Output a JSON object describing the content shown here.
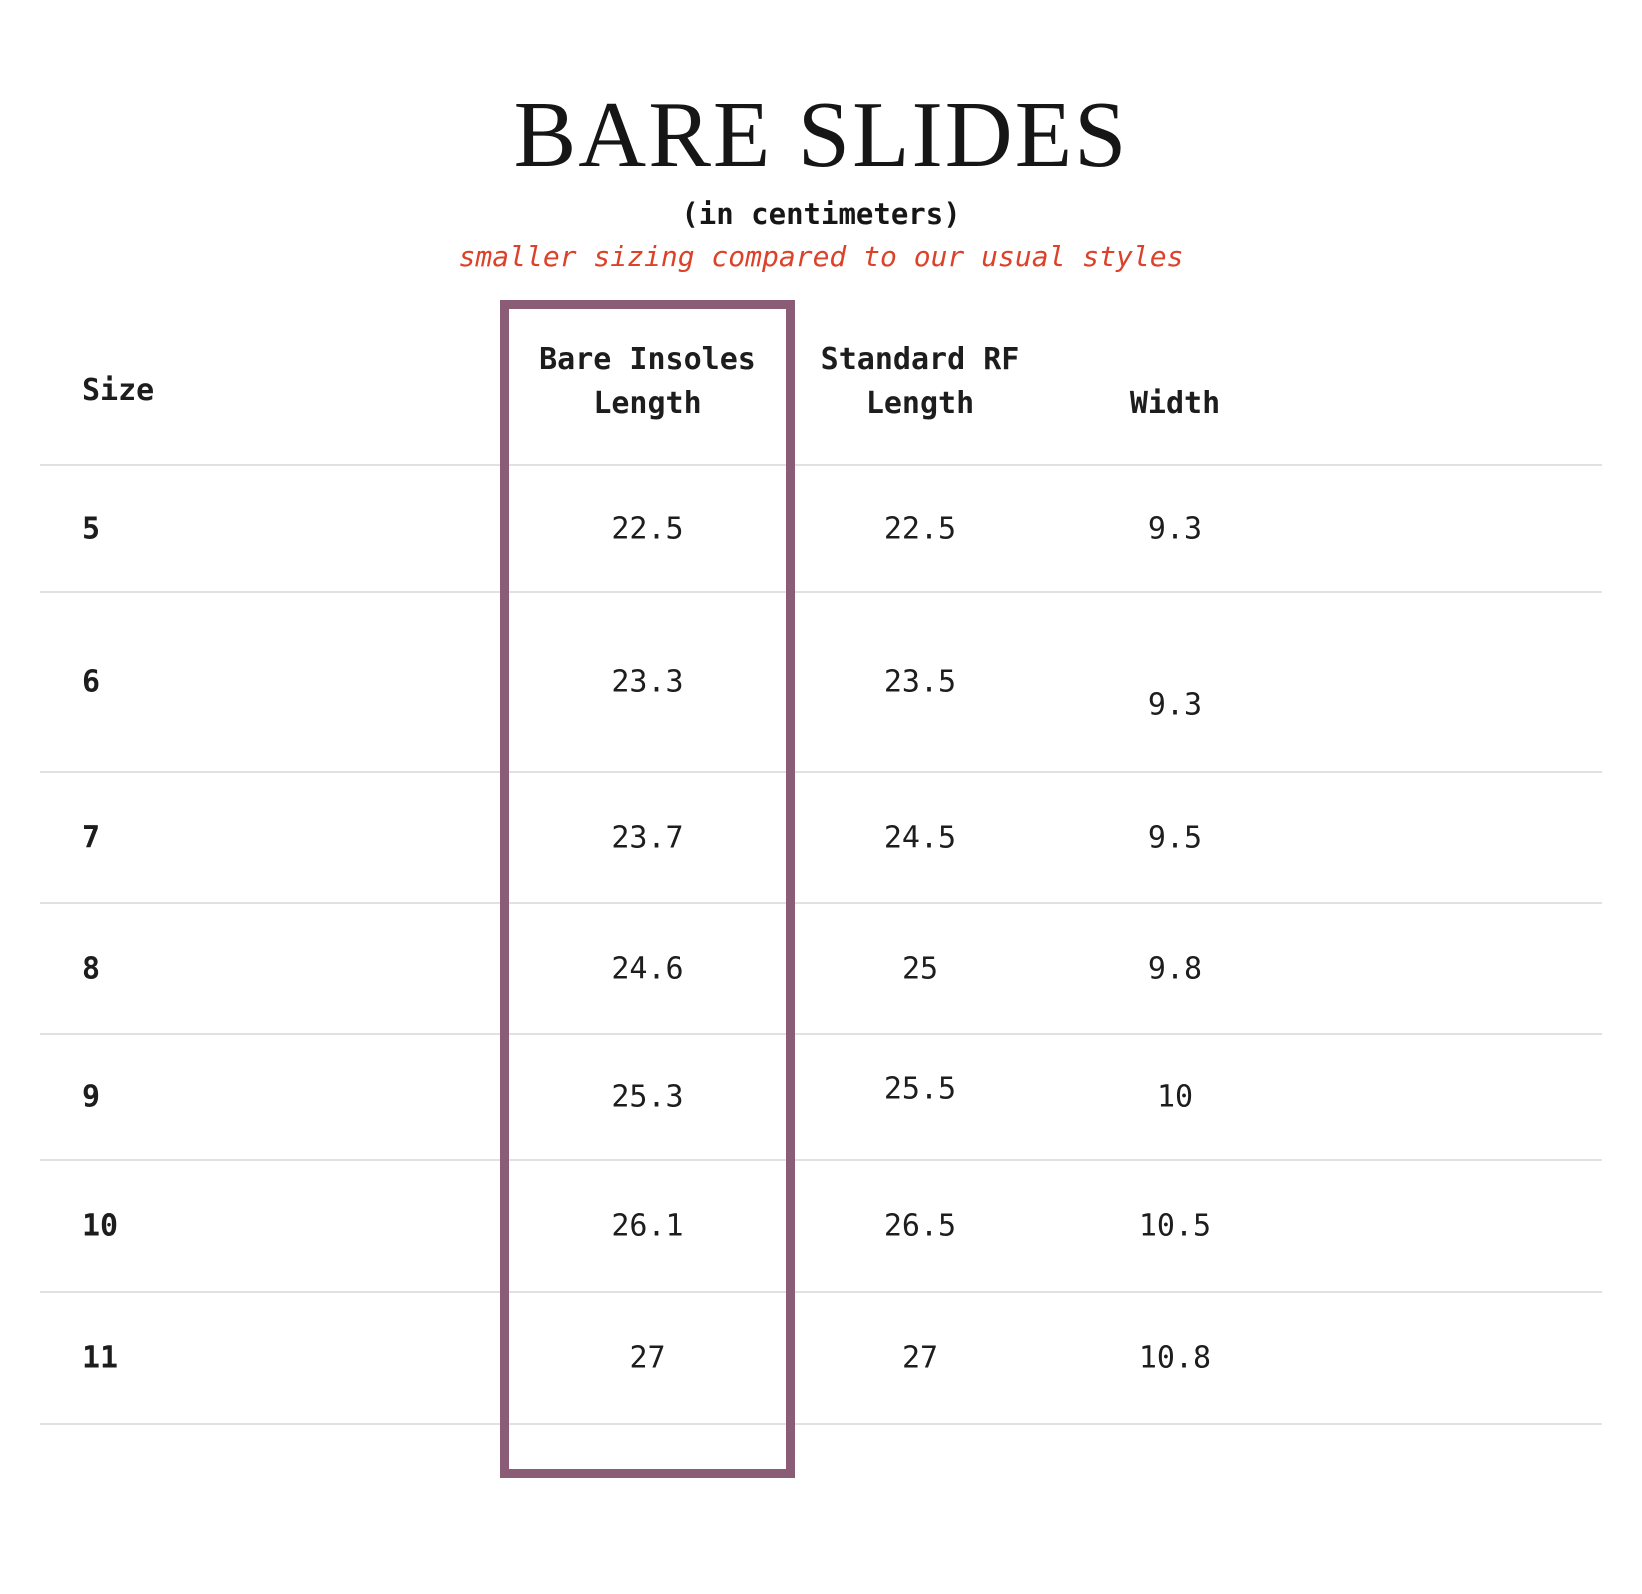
{
  "chart_data": {
    "type": "table",
    "title": "BARE SLIDES",
    "subtitle": "(in centimeters)",
    "note": "smaller sizing compared to our usual styles",
    "columns": [
      "Size",
      "Bare Insoles Length",
      "Standard RF Length",
      "Width"
    ],
    "highlighted_column": "Bare Insoles Length",
    "rows": [
      {
        "size": "5",
        "bare_insoles_length": "22.5",
        "standard_rf_length": "22.5",
        "width": "9.3"
      },
      {
        "size": "6",
        "bare_insoles_length": "23.3",
        "standard_rf_length": "23.5",
        "width": "9.3"
      },
      {
        "size": "7",
        "bare_insoles_length": "23.7",
        "standard_rf_length": "24.5",
        "width": "9.5"
      },
      {
        "size": "8",
        "bare_insoles_length": "24.6",
        "standard_rf_length": "25",
        "width": "9.8"
      },
      {
        "size": "9",
        "bare_insoles_length": "25.3",
        "standard_rf_length": "25.5",
        "width": "10"
      },
      {
        "size": "10",
        "bare_insoles_length": "26.1",
        "standard_rf_length": "26.5",
        "width": "10.5"
      },
      {
        "size": "11",
        "bare_insoles_length": "27",
        "standard_rf_length": "27",
        "width": "10.8"
      }
    ]
  },
  "header_labels": {
    "size": "Size",
    "bare_line1": "Bare Insoles",
    "bare_line2": "Length",
    "std_line1": "Standard RF",
    "std_line2": "Length",
    "width": "Width"
  },
  "colors": {
    "note_red": "#dc4229",
    "highlight_border": "#8b5c75",
    "gridline": "#e1e1e1",
    "text": "#1d1d1d",
    "background": "#ffffff"
  }
}
